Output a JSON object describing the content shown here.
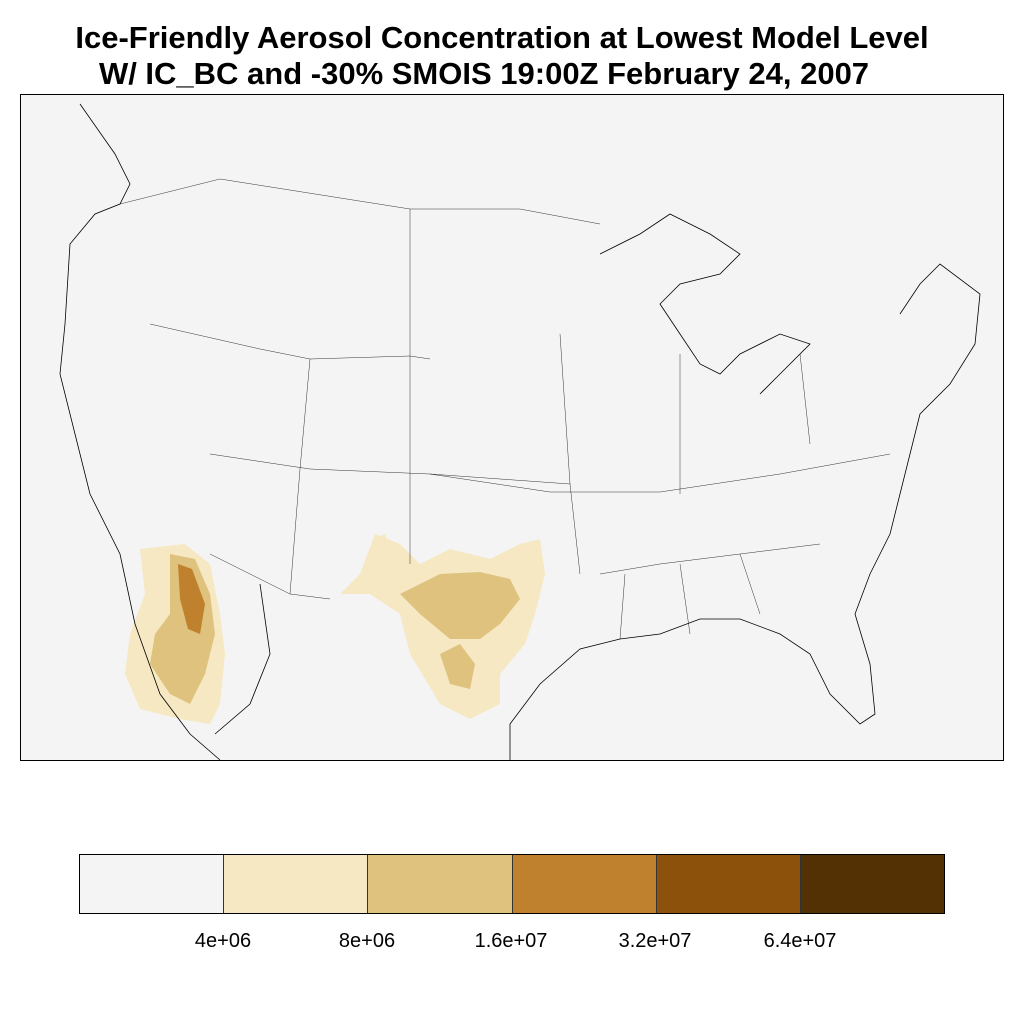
{
  "title": {
    "line1": "Ice-Friendly Aerosol Concentration at Lowest Model Level",
    "line2": "W/ IC_BC and -30% SMOIS 19:00Z February 24, 2007"
  },
  "colorbar": {
    "colors": [
      "#f4f4f4",
      "#f6e8c3",
      "#dfc27d",
      "#bf812d",
      "#8c510a",
      "#543005"
    ],
    "labels": [
      "4e+06",
      "8e+06",
      "1.6e+07",
      "3.2e+07",
      "6.4e+07"
    ]
  },
  "map": {
    "background": "#f4f4f4",
    "region": "Contiguous United States"
  }
}
